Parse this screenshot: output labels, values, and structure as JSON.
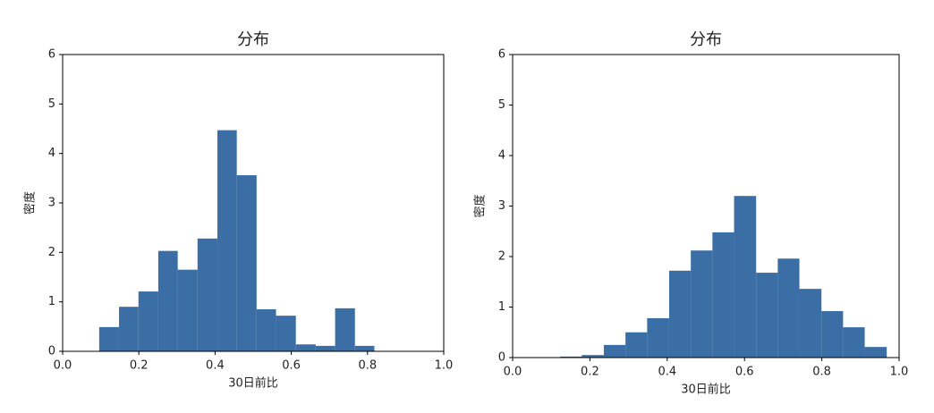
{
  "chart_data": [
    {
      "type": "histogram",
      "title": "分布",
      "x_label": "30日前比",
      "y_label": "密度",
      "color": "#3a6ea5",
      "bins": [
        0.096,
        0.148,
        0.199,
        0.251,
        0.302,
        0.354,
        0.406,
        0.457,
        0.509,
        0.56,
        0.612,
        0.664,
        0.715,
        0.767,
        0.818
      ],
      "values": [
        0.49,
        0.9,
        1.21,
        2.03,
        1.65,
        2.28,
        4.47,
        3.56,
        0.85,
        0.72,
        0.14,
        0.11,
        0.87,
        0.11
      ],
      "xlim": [
        0,
        1
      ],
      "xticks": [
        {
          "value": 0,
          "label": "0.0"
        },
        0.2,
        0.4,
        0.6,
        0.8,
        {
          "value": 1,
          "label": "1.0"
        }
      ],
      "ylim": [
        0,
        6
      ],
      "yticks": [
        0,
        1,
        2,
        3,
        4,
        5,
        6
      ]
    },
    {
      "type": "histogram",
      "title": "分布",
      "x_label": "30日前比",
      "y_label": "密度",
      "color": "#3a6ea5",
      "bins": [
        0.123,
        0.179,
        0.236,
        0.292,
        0.348,
        0.405,
        0.461,
        0.517,
        0.573,
        0.63,
        0.686,
        0.742,
        0.799,
        0.855,
        0.911,
        0.968
      ],
      "values": [
        0.02,
        0.05,
        0.25,
        0.5,
        0.78,
        1.72,
        2.12,
        2.48,
        3.2,
        1.68,
        1.96,
        1.36,
        0.92,
        0.6,
        0.21
      ],
      "xlim": [
        0,
        1
      ],
      "xticks": [
        {
          "value": 0,
          "label": "0.0"
        },
        0.2,
        0.4,
        0.6,
        0.8,
        {
          "value": 1,
          "label": "1.0"
        }
      ],
      "ylim": [
        0,
        6
      ],
      "yticks": [
        0,
        1,
        2,
        3,
        4,
        5,
        6
      ]
    }
  ]
}
